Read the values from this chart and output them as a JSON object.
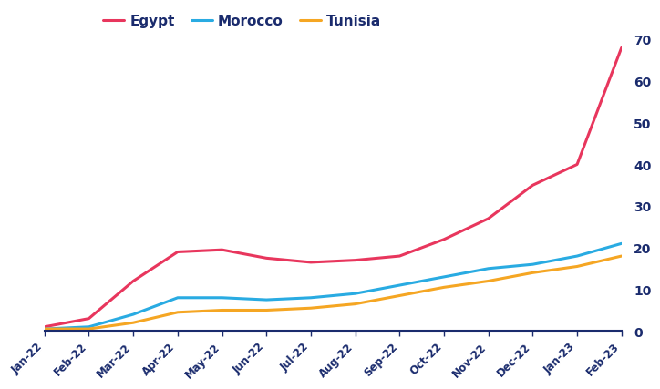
{
  "months": [
    "Jan-22",
    "Feb-22",
    "Mar-22",
    "Apr-22",
    "May-22",
    "Jun-22",
    "Jul-22",
    "Aug-22",
    "Sep-22",
    "Oct-22",
    "Nov-22",
    "Dec-22",
    "Jan-23",
    "Feb-23"
  ],
  "egypt": [
    1,
    3,
    12,
    19,
    19.5,
    17.5,
    16.5,
    17,
    18,
    22,
    27,
    35,
    40,
    68
  ],
  "morocco": [
    0.5,
    1,
    4,
    8,
    8,
    7.5,
    8,
    9,
    11,
    13,
    15,
    16,
    18,
    21
  ],
  "tunisia": [
    0.5,
    0.5,
    2,
    4.5,
    5,
    5,
    5.5,
    6.5,
    8.5,
    10.5,
    12,
    14,
    15.5,
    18
  ],
  "egypt_color": "#e8365d",
  "morocco_color": "#29abe2",
  "tunisia_color": "#f5a623",
  "axis_color": "#1a2b6d",
  "background_color": "#ffffff",
  "ylim": [
    0,
    70
  ],
  "yticks": [
    0,
    10,
    20,
    30,
    40,
    50,
    60,
    70
  ],
  "legend_labels": [
    "Egypt",
    "Morocco",
    "Tunisia"
  ],
  "line_width": 2.2
}
